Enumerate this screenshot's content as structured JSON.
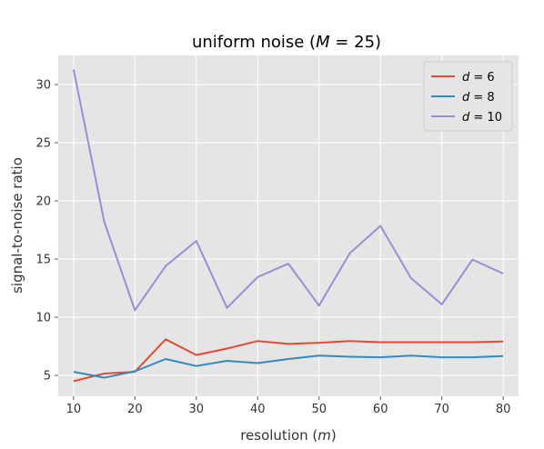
{
  "chart_data": {
    "type": "line",
    "title_prefix": "uniform noise (",
    "title_var": "M",
    "title_suffix": " = 25)",
    "xlabel_prefix": "resolution (",
    "xlabel_var": "m",
    "xlabel_suffix": ")",
    "ylabel": "signal-to-noise ratio",
    "xlim": [
      7.5,
      82.5
    ],
    "ylim": [
      3.2,
      32.5
    ],
    "xticks": [
      10,
      20,
      30,
      40,
      50,
      60,
      70,
      80
    ],
    "yticks": [
      5,
      10,
      15,
      20,
      25,
      30
    ],
    "grid": true,
    "legend_position": "top-right",
    "x": [
      10,
      15,
      20,
      25,
      30,
      35,
      40,
      45,
      50,
      55,
      60,
      65,
      70,
      75,
      80
    ],
    "series": [
      {
        "name_var": "d",
        "name_eq": " = 6",
        "color": "#E24A33",
        "values": [
          4.5,
          5.15,
          5.3,
          8.1,
          6.75,
          7.3,
          7.95,
          7.7,
          7.8,
          7.95,
          7.85,
          7.85,
          7.85,
          7.85,
          7.9
        ]
      },
      {
        "name_var": "d",
        "name_eq": " = 8",
        "color": "#348ABD",
        "values": [
          5.3,
          4.8,
          5.35,
          6.4,
          5.8,
          6.25,
          6.05,
          6.4,
          6.7,
          6.6,
          6.55,
          6.7,
          6.55,
          6.55,
          6.65
        ]
      },
      {
        "name_var": "d",
        "name_eq": " = 10",
        "color": "#988ED5",
        "values": [
          31.3,
          18.2,
          10.6,
          14.4,
          16.55,
          10.8,
          13.45,
          14.6,
          11.0,
          15.5,
          17.85,
          13.35,
          11.1,
          14.95,
          13.75
        ]
      }
    ]
  }
}
